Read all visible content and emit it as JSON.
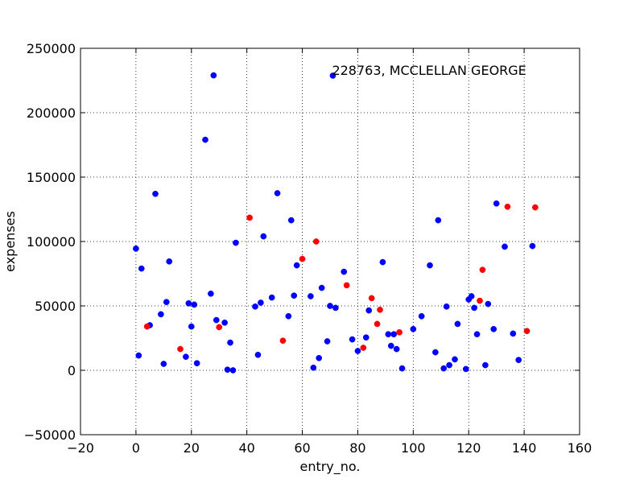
{
  "chart_data": {
    "type": "scatter",
    "title": "",
    "xlabel": "entry_no.",
    "ylabel": "expenses",
    "xlim": [
      -20,
      160
    ],
    "ylim": [
      -50000,
      250000
    ],
    "x_ticks": [
      -20,
      0,
      20,
      40,
      60,
      80,
      100,
      120,
      140,
      160
    ],
    "y_ticks": [
      -50000,
      0,
      50000,
      100000,
      150000,
      200000,
      250000
    ],
    "x_tick_labels": [
      "−20",
      "0",
      "20",
      "40",
      "60",
      "80",
      "100",
      "120",
      "140",
      "160"
    ],
    "y_tick_labels": [
      "−50000",
      "0",
      "50000",
      "100000",
      "150000",
      "200000",
      "250000"
    ],
    "grid": true,
    "annotation": {
      "text": "228763, MCCLELLAN GEORGE",
      "x": 71,
      "y": 228763
    },
    "series": [
      {
        "name": "blue",
        "color": "#0000ff",
        "points": [
          [
            0,
            94500
          ],
          [
            1,
            11500
          ],
          [
            2,
            79000
          ],
          [
            5,
            35000
          ],
          [
            7,
            137000
          ],
          [
            9,
            43500
          ],
          [
            10,
            5000
          ],
          [
            11,
            53000
          ],
          [
            12,
            84500
          ],
          [
            18,
            10500
          ],
          [
            19,
            52000
          ],
          [
            20,
            34000
          ],
          [
            21,
            51000
          ],
          [
            22,
            5500
          ],
          [
            25,
            179000
          ],
          [
            27,
            59500
          ],
          [
            28,
            229000
          ],
          [
            29,
            39000
          ],
          [
            32,
            37000
          ],
          [
            33,
            500
          ],
          [
            34,
            21500
          ],
          [
            35,
            0
          ],
          [
            36,
            99000
          ],
          [
            43,
            49500
          ],
          [
            44,
            12000
          ],
          [
            45,
            52500
          ],
          [
            46,
            104000
          ],
          [
            49,
            56500
          ],
          [
            51,
            137500
          ],
          [
            55,
            42000
          ],
          [
            56,
            116500
          ],
          [
            57,
            58000
          ],
          [
            58,
            81500
          ],
          [
            63,
            57500
          ],
          [
            64,
            2000
          ],
          [
            66,
            9500
          ],
          [
            67,
            64000
          ],
          [
            69,
            22500
          ],
          [
            70,
            50000
          ],
          [
            72,
            48500
          ],
          [
            75,
            76500
          ],
          [
            78,
            24000
          ],
          [
            80,
            15000
          ],
          [
            83,
            25500
          ],
          [
            84,
            46500
          ],
          [
            89,
            84000
          ],
          [
            91,
            28000
          ],
          [
            92,
            19000
          ],
          [
            93,
            28000
          ],
          [
            94,
            16500
          ],
          [
            96,
            1500
          ],
          [
            100,
            32000
          ],
          [
            103,
            42000
          ],
          [
            106,
            81500
          ],
          [
            108,
            14000
          ],
          [
            109,
            116500
          ],
          [
            111,
            1500
          ],
          [
            112,
            49500
          ],
          [
            113,
            4000
          ],
          [
            115,
            8500
          ],
          [
            116,
            36000
          ],
          [
            119,
            1000
          ],
          [
            120,
            55000
          ],
          [
            121,
            57500
          ],
          [
            122,
            48500
          ],
          [
            123,
            28000
          ],
          [
            126,
            4000
          ],
          [
            127,
            51500
          ],
          [
            129,
            32000
          ],
          [
            130,
            129500
          ],
          [
            133,
            96000
          ],
          [
            136,
            28500
          ],
          [
            138,
            8000
          ],
          [
            143,
            96500
          ],
          [
            71,
            228763
          ]
        ]
      },
      {
        "name": "red",
        "color": "#ff0000",
        "points": [
          [
            4,
            34000
          ],
          [
            16,
            16500
          ],
          [
            30,
            33500
          ],
          [
            41,
            118500
          ],
          [
            53,
            23000
          ],
          [
            60,
            86500
          ],
          [
            65,
            100000
          ],
          [
            76,
            66000
          ],
          [
            82,
            17500
          ],
          [
            85,
            56000
          ],
          [
            87,
            36000
          ],
          [
            88,
            47000
          ],
          [
            95,
            29500
          ],
          [
            124,
            54000
          ],
          [
            125,
            78000
          ],
          [
            134,
            127000
          ],
          [
            141,
            30500
          ],
          [
            144,
            126500
          ]
        ]
      }
    ]
  }
}
